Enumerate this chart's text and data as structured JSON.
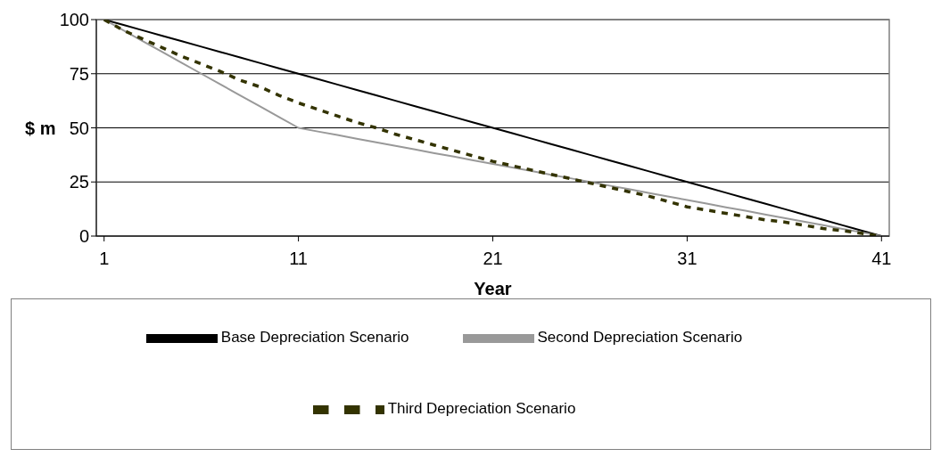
{
  "chart_data": {
    "type": "line",
    "xlabel": "Year",
    "ylabel": "$ m",
    "x": [
      1,
      2,
      3,
      4,
      5,
      6,
      7,
      8,
      9,
      10,
      11,
      12,
      13,
      14,
      15,
      16,
      17,
      18,
      19,
      20,
      21,
      22,
      23,
      24,
      25,
      26,
      27,
      28,
      29,
      30,
      31,
      32,
      33,
      34,
      35,
      36,
      37,
      38,
      39,
      40,
      41
    ],
    "xlim": [
      0.6,
      41.4
    ],
    "xticks": [
      1,
      11,
      21,
      31,
      41
    ],
    "ylim": [
      0,
      100
    ],
    "yticks": [
      0,
      25,
      50,
      75,
      100
    ],
    "grid": "y",
    "legend": "bottom",
    "marker": "none",
    "series": [
      {
        "name": "Base Depreciation Scenario",
        "color": "#000000",
        "line_style": "solid",
        "values": [
          100,
          97.5,
          95,
          92.5,
          90,
          87.5,
          85,
          82.5,
          80,
          77.5,
          75,
          72.5,
          70,
          67.5,
          65,
          62.5,
          60,
          57.5,
          55,
          52.5,
          50,
          47.5,
          45,
          42.5,
          40,
          37.5,
          35,
          32.5,
          30,
          27.5,
          25,
          22.5,
          20,
          17.5,
          15,
          12.5,
          10,
          7.5,
          5,
          2.5,
          0
        ]
      },
      {
        "name": "Second Depreciation Scenario",
        "color": "#999999",
        "line_style": "solid",
        "values": [
          100,
          95,
          90,
          85,
          80,
          75,
          70,
          65,
          60,
          55,
          50,
          48.3,
          46.7,
          45,
          43.3,
          41.7,
          40,
          38.3,
          36.7,
          35,
          33.3,
          31.7,
          30,
          28.3,
          26.7,
          25,
          23.3,
          21.7,
          20,
          18.3,
          16.7,
          15,
          13.3,
          11.7,
          10,
          8.3,
          6.7,
          5,
          3.3,
          1.7,
          0
        ]
      },
      {
        "name": "Third Depreciation Scenario",
        "color": "#333300",
        "line_style": "dashed",
        "values": [
          100,
          95,
          91,
          87,
          83,
          79.5,
          76,
          72,
          69,
          65,
          61.5,
          58.5,
          55.5,
          52.5,
          50,
          47,
          44.5,
          42,
          39.5,
          37,
          34.5,
          32.5,
          30.5,
          28.5,
          26.5,
          24.5,
          22.5,
          20.5,
          18.5,
          16,
          13.5,
          12,
          10.5,
          9,
          7.5,
          6.5,
          5,
          3.5,
          2.5,
          1.2,
          0
        ]
      }
    ]
  }
}
